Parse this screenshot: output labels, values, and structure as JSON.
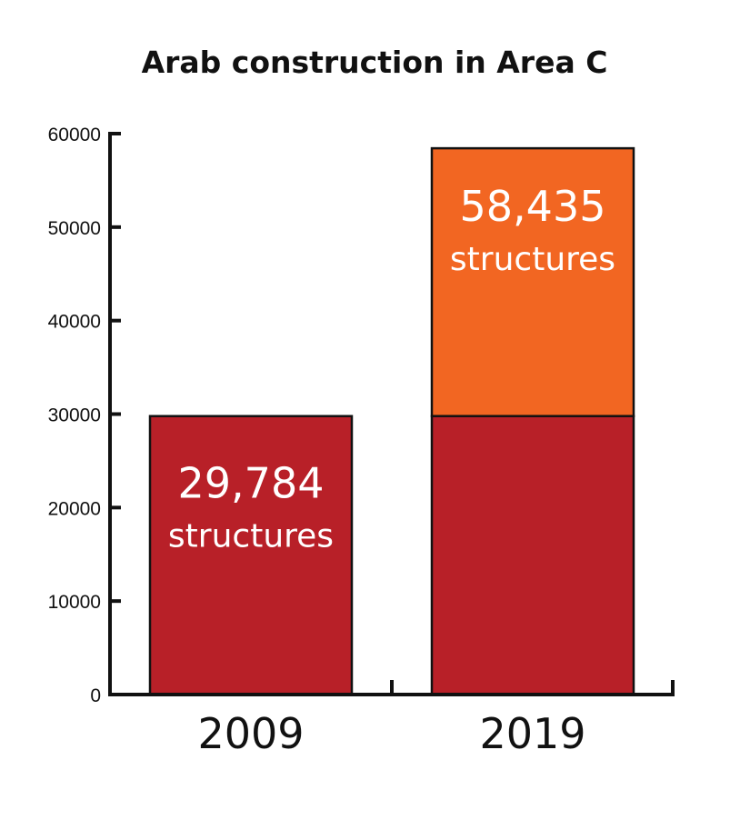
{
  "chart_data": {
    "type": "bar",
    "title": "Arab construction in Area C",
    "xlabel": "",
    "ylabel": "",
    "categories": [
      "2009",
      "2019"
    ],
    "values": [
      29784,
      58435
    ],
    "baseline": 29784,
    "ylim": [
      0,
      60000
    ],
    "yticks": [
      "0",
      "10000",
      "20000",
      "30000",
      "40000",
      "50000",
      "60000"
    ],
    "bar_labels": [
      {
        "value": "29,784",
        "unit": "structures"
      },
      {
        "value": "58,435",
        "unit": "structures"
      }
    ],
    "colors": {
      "base": "#b82028",
      "growth": "#f26622",
      "axis": "#111111",
      "outline": "#111111"
    },
    "grid": false,
    "legend": "none"
  }
}
